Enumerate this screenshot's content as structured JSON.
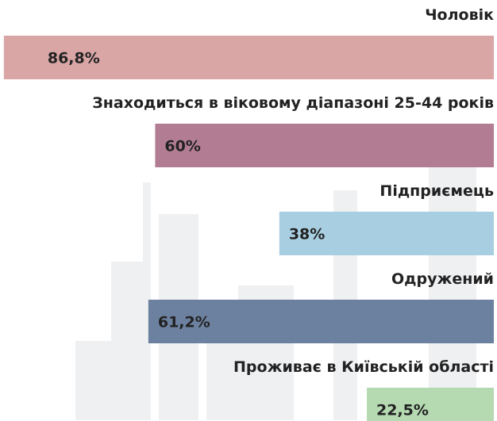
{
  "chart_data": {
    "type": "bar",
    "orientation": "horizontal",
    "categories": [
      "Чоловік",
      "Знаходиться в віковому діапазоні 25-44 років",
      "Підприємець",
      "Одружений",
      "Проживає в Київській області"
    ],
    "values": [
      86.8,
      60,
      38,
      61.2,
      22.5
    ],
    "value_labels": [
      "86,8%",
      "60%",
      "38%",
      "61,2%",
      "22,5%"
    ],
    "colors": [
      "#d9a5a5",
      "#b27d93",
      "#a8cfe1",
      "#6c809f",
      "#b5dab2"
    ],
    "xlim": [
      0,
      100
    ]
  }
}
